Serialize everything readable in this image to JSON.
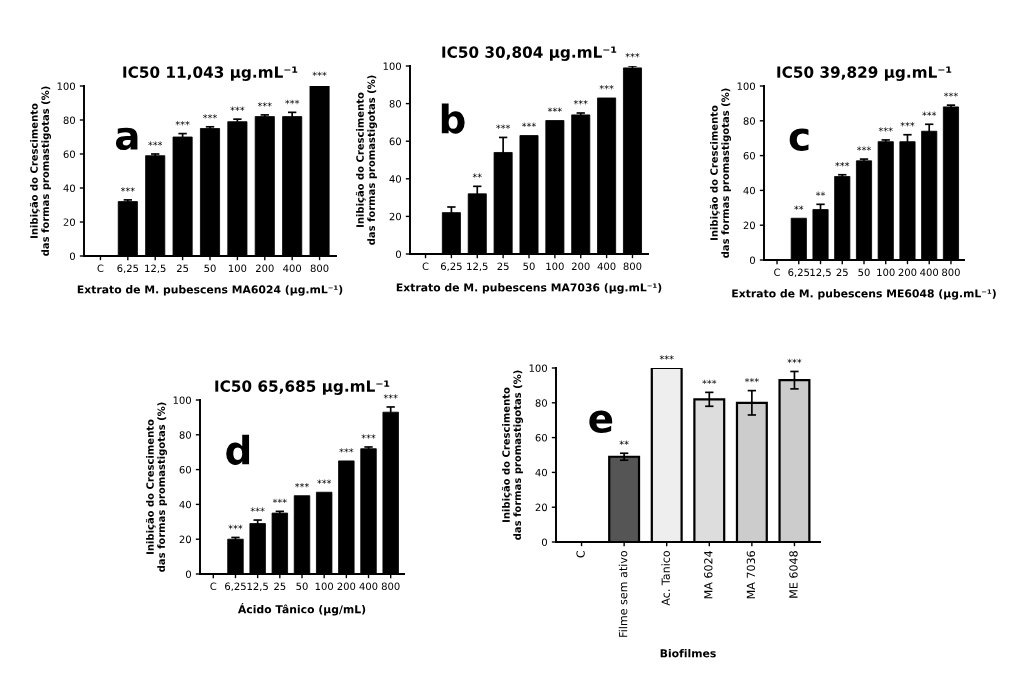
{
  "chart_data": [
    {
      "type": "bar",
      "title": "IC50 11,043 μg.mL⁻¹",
      "xlabel": "Extrato de M. pubescens MA6024 (μg.mL⁻¹)",
      "ylabel": "Inibição do Crescimento\ndas formas promastigotas (%)",
      "annotations": [
        "a"
      ],
      "categories": [
        "C",
        "6,25",
        "12,5",
        "25",
        "50",
        "100",
        "200",
        "400",
        "800"
      ],
      "values": [
        0,
        32,
        59,
        70,
        75,
        79,
        82,
        82,
        100
      ],
      "errors": [
        null,
        1,
        1,
        2,
        1,
        1.5,
        1,
        2.5,
        1
      ],
      "value_labels": [
        null,
        "***",
        "***",
        "***",
        "***",
        "***",
        "***",
        "***",
        "***"
      ],
      "color": "#000000",
      "ylim": [
        0,
        100
      ],
      "yticks": [
        0,
        20,
        40,
        60,
        80,
        100
      ],
      "grid": false,
      "legend": false
    },
    {
      "type": "bar",
      "title": "IC50 30,804 μg.mL⁻¹",
      "xlabel": "Extrato de M. pubescens MA7036 (μg.mL⁻¹)",
      "ylabel": "Inibição do Crescimento\ndas formas promastigotas (%)",
      "annotations": [
        "b"
      ],
      "categories": [
        "C",
        "6,25",
        "12,5",
        "25",
        "50",
        "100",
        "200",
        "400",
        "800"
      ],
      "values": [
        0,
        22,
        32,
        54,
        63,
        71,
        74,
        83,
        99
      ],
      "errors": [
        null,
        3,
        4,
        8,
        null,
        null,
        1,
        null,
        1
      ],
      "value_labels": [
        null,
        null,
        "**",
        "***",
        "***",
        "***",
        "***",
        "***",
        "***"
      ],
      "color": "#000000",
      "ylim": [
        0,
        100
      ],
      "yticks": [
        0,
        20,
        40,
        60,
        80,
        100
      ],
      "grid": false,
      "legend": false
    },
    {
      "type": "bar",
      "title": "IC50 39,829 μg.mL⁻¹",
      "xlabel": "Extrato de M. pubescens ME6048 (μg.mL⁻¹)",
      "ylabel": "Inibição do Crescimento\ndas formas promastigotas (%)",
      "annotations": [
        "c"
      ],
      "categories": [
        "C",
        "6,25",
        "12,5",
        "25",
        "50",
        "100",
        "200",
        "400",
        "800"
      ],
      "values": [
        0,
        24,
        29,
        48,
        57,
        68,
        68,
        74,
        88
      ],
      "errors": [
        null,
        null,
        3,
        1,
        1,
        1,
        4,
        4,
        1
      ],
      "value_labels": [
        null,
        "**",
        "**",
        "***",
        "***",
        "***",
        "***",
        "***",
        "***"
      ],
      "color": "#000000",
      "ylim": [
        0,
        100
      ],
      "yticks": [
        0,
        20,
        40,
        60,
        80,
        100
      ],
      "grid": false,
      "legend": false
    },
    {
      "type": "bar",
      "title": "IC50 65,685 μg.mL⁻¹",
      "xlabel": "Ácido Tânico (μg/mL)",
      "ylabel": "Inibição do Crescimento\ndas formas promastigotas (%)",
      "annotations": [
        "d"
      ],
      "categories": [
        "C",
        "6,25",
        "12,5",
        "25",
        "50",
        "100",
        "200",
        "400",
        "800"
      ],
      "values": [
        0,
        20,
        29,
        35,
        45,
        47,
        65,
        72,
        93
      ],
      "errors": [
        null,
        1,
        2,
        1,
        null,
        null,
        null,
        1,
        3
      ],
      "value_labels": [
        null,
        "***",
        "***",
        "***",
        "***",
        "***",
        "***",
        "***",
        "***"
      ],
      "color": "#000000",
      "ylim": [
        0,
        100
      ],
      "yticks": [
        0,
        20,
        40,
        60,
        80,
        100
      ],
      "grid": false,
      "legend": false
    },
    {
      "type": "bar",
      "xlabel": "Biofilmes",
      "ylabel": "Inibição do Crescimento\ndas formas promastigotas (%)",
      "annotations": [
        "e"
      ],
      "categories": [
        "C",
        "Filme sem ativo",
        "Ac. Tanico",
        "MA 6024",
        "MA 7036",
        "ME 6048"
      ],
      "values": [
        0,
        49,
        100,
        82,
        80,
        93
      ],
      "errors": [
        null,
        2,
        null,
        4,
        7,
        5
      ],
      "value_labels": [
        null,
        "**",
        "***",
        "***",
        "***",
        "***"
      ],
      "colors": [
        "#000000",
        "#555555",
        "#eeeeee",
        "#dddddd",
        "#cccccc",
        "#cccccc"
      ],
      "ylim": [
        0,
        100
      ],
      "yticks": [
        0,
        20,
        40,
        60,
        80,
        100
      ],
      "grid": false,
      "legend": false
    }
  ]
}
